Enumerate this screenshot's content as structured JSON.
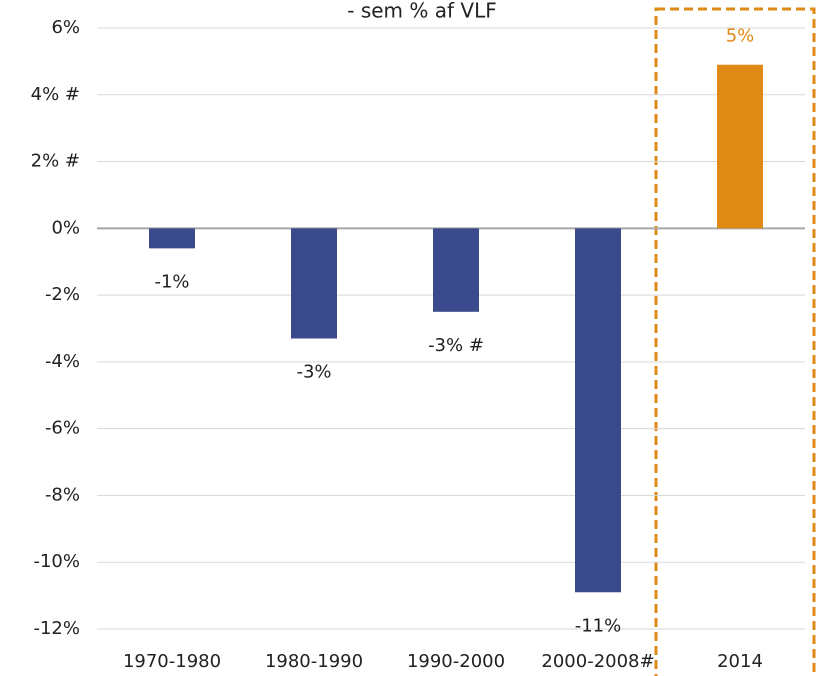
{
  "chart_data": {
    "type": "bar",
    "subtitle": "- sem % af VLF",
    "categories": [
      "1970-1980",
      "1980-1990",
      "1990-2000",
      "2000-2008#",
      "2014"
    ],
    "values": [
      -0.6,
      -3.3,
      -2.5,
      -10.9,
      4.9
    ],
    "value_labels": [
      "-1%",
      "-3%",
      "-3% #",
      "-11%",
      "5%"
    ],
    "colors": [
      "#3b4a8c",
      "#3b4a8c",
      "#3b4a8c",
      "#3b4a8c",
      "#e08a16"
    ],
    "ylim": [
      -12,
      6
    ],
    "yticks": [
      {
        "value": 6,
        "label": "6%"
      },
      {
        "value": 4,
        "label": "4% #"
      },
      {
        "value": 2,
        "label": "2% #"
      },
      {
        "value": 0,
        "label": "0%"
      },
      {
        "value": -2,
        "label": "-2%"
      },
      {
        "value": -4,
        "label": "-4%"
      },
      {
        "value": -6,
        "label": "-6%"
      },
      {
        "value": -8,
        "label": "-8%"
      },
      {
        "value": -10,
        "label": "-10%"
      },
      {
        "value": -12,
        "label": "-12%"
      }
    ],
    "grid": true
  }
}
